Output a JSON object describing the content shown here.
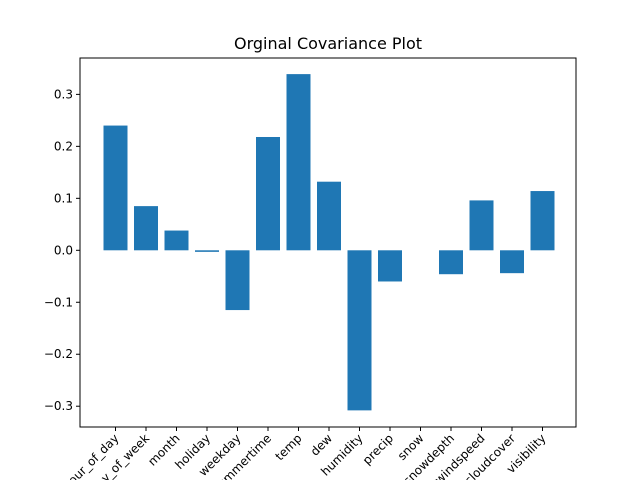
{
  "chart_data": {
    "type": "bar",
    "title": "Orginal Covariance Plot",
    "xlabel": "",
    "ylabel": "",
    "categories": [
      "hour_of_day",
      "day_of_week",
      "month",
      "holiday",
      "weekday",
      "summertime",
      "temp",
      "dew",
      "humidity",
      "precip",
      "snow",
      "snowdepth",
      "windspeed",
      "cloudcover",
      "visibility"
    ],
    "values": [
      0.24,
      0.085,
      0.038,
      -0.003,
      -0.115,
      0.218,
      0.339,
      0.132,
      -0.308,
      -0.06,
      0.0,
      -0.046,
      0.096,
      -0.044,
      0.114
    ],
    "ylim": [
      -0.34,
      0.37
    ],
    "yticks": [
      -0.3,
      -0.2,
      -0.1,
      0.0,
      0.1,
      0.2,
      0.3
    ],
    "ytick_labels": [
      "−0.3",
      "−0.2",
      "−0.1",
      "0.0",
      "0.1",
      "0.2",
      "0.3"
    ],
    "bar_color": "#1f77b4",
    "grid": false,
    "legend": "none"
  }
}
